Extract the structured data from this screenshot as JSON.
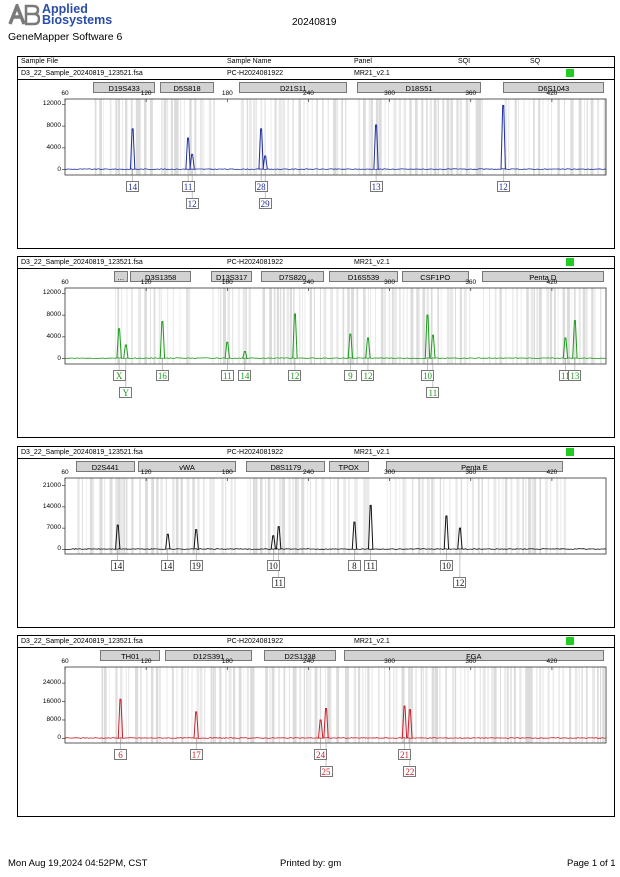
{
  "brand": {
    "line1": "Applied",
    "line2": "Biosystems"
  },
  "software": "GeneMapper Software 6",
  "run_date": "20240819",
  "header_columns": [
    "Sample File",
    "Sample Name",
    "Panel",
    "SQI",
    "SQ"
  ],
  "footer": {
    "datetime": "Mon Aug 19,2024 04:52PM, CST",
    "printed_by": "Printed by: gm",
    "page": "Page 1 of 1"
  },
  "colors": {
    "blue": "#1f2f9e",
    "green": "#1c9a1c",
    "black": "#111111",
    "red": "#c8202a",
    "quality": "#22cc22"
  },
  "chart_data": [
    {
      "type": "line",
      "sample_file": "D3_22_Sample_20240819_123521.fsa",
      "sample_name": "PC-H2024081922",
      "panel": "MR21_v2.1",
      "xlim": [
        60,
        460
      ],
      "x_ticks": [
        60,
        120,
        180,
        240,
        300,
        360,
        420
      ],
      "ylim": [
        -1000,
        13000
      ],
      "y_ticks": [
        0,
        4000,
        8000,
        12000
      ],
      "markers": [
        {
          "name": "D19S433",
          "start": 81,
          "end": 128
        },
        {
          "name": "D5S818",
          "start": 130,
          "end": 172
        },
        {
          "name": "D21S11",
          "start": 189,
          "end": 270
        },
        {
          "name": "D18S51",
          "start": 276,
          "end": 369
        },
        {
          "name": "D6S1043",
          "start": 384,
          "end": 460
        }
      ],
      "peaks": [
        {
          "x": 110,
          "height": 7500,
          "allele": "14",
          "row": 0
        },
        {
          "x": 151,
          "height": 5800,
          "allele": "11",
          "row": 0
        },
        {
          "x": 154,
          "height": 2800,
          "allele": "12",
          "row": 1
        },
        {
          "x": 205,
          "height": 7500,
          "allele": "28",
          "row": 0
        },
        {
          "x": 208,
          "height": 2500,
          "allele": "29",
          "row": 1
        },
        {
          "x": 290,
          "height": 8200,
          "allele": "13",
          "row": 0
        },
        {
          "x": 384,
          "height": 11800,
          "allele": "12",
          "row": 0
        }
      ]
    },
    {
      "type": "line",
      "sample_file": "D3_22_Sample_20240819_123521.fsa",
      "sample_name": "PC-H2024081922",
      "panel": "MR21_v2.1",
      "xlim": [
        60,
        460
      ],
      "x_ticks": [
        60,
        120,
        180,
        240,
        300,
        360,
        420
      ],
      "ylim": [
        -1000,
        13000
      ],
      "y_ticks": [
        0,
        4000,
        8000,
        12000
      ],
      "markers": [
        {
          "name": "...",
          "start": 96,
          "end": 108
        },
        {
          "name": "D3S1358",
          "start": 108,
          "end": 155
        },
        {
          "name": "D13S317",
          "start": 168,
          "end": 200
        },
        {
          "name": "D7S820",
          "start": 205,
          "end": 253
        },
        {
          "name": "D16S539",
          "start": 255,
          "end": 308
        },
        {
          "name": "CSF1PO",
          "start": 309,
          "end": 360
        },
        {
          "name": "Penta D",
          "start": 368,
          "end": 460
        }
      ],
      "peaks": [
        {
          "x": 100,
          "height": 5500,
          "allele": "X",
          "row": 0
        },
        {
          "x": 105,
          "height": 2500,
          "allele": "Y",
          "row": 1
        },
        {
          "x": 132,
          "height": 6800,
          "allele": "16",
          "row": 0
        },
        {
          "x": 180,
          "height": 3000,
          "allele": "11",
          "row": 0
        },
        {
          "x": 193,
          "height": 1300,
          "allele": "14",
          "row": 0
        },
        {
          "x": 230,
          "height": 8200,
          "allele": "12",
          "row": 0
        },
        {
          "x": 271,
          "height": 4500,
          "allele": "9",
          "row": 0
        },
        {
          "x": 284,
          "height": 3800,
          "allele": "12",
          "row": 0
        },
        {
          "x": 328,
          "height": 8000,
          "allele": "10",
          "row": 0
        },
        {
          "x": 332,
          "height": 4300,
          "allele": "11",
          "row": 1
        },
        {
          "x": 430,
          "height": 3800,
          "allele": "11",
          "row": 0
        },
        {
          "x": 437,
          "height": 7000,
          "allele": "13",
          "row": 0
        }
      ]
    },
    {
      "type": "line",
      "sample_file": "D3_22_Sample_20240819_123521.fsa",
      "sample_name": "PC-H2024081922",
      "panel": "MR21_v2.1",
      "xlim": [
        60,
        460
      ],
      "x_ticks": [
        60,
        120,
        180,
        240,
        300,
        360,
        420
      ],
      "ylim": [
        -1500,
        23500
      ],
      "y_ticks": [
        0,
        7000,
        14000,
        21000
      ],
      "markers": [
        {
          "name": "D2S441",
          "start": 68,
          "end": 113
        },
        {
          "name": "vWA",
          "start": 114,
          "end": 188
        },
        {
          "name": "D8S1179",
          "start": 194,
          "end": 254
        },
        {
          "name": "TPOX",
          "start": 255,
          "end": 286
        },
        {
          "name": "Penta E",
          "start": 297,
          "end": 430
        }
      ],
      "peaks": [
        {
          "x": 99,
          "height": 8000,
          "allele": "14",
          "row": 0
        },
        {
          "x": 136,
          "height": 5000,
          "allele": "14",
          "row": 0
        },
        {
          "x": 157,
          "height": 6500,
          "allele": "19",
          "row": 0
        },
        {
          "x": 214,
          "height": 4500,
          "allele": "10",
          "row": 0
        },
        {
          "x": 218,
          "height": 7500,
          "allele": "11",
          "row": 1
        },
        {
          "x": 274,
          "height": 9000,
          "allele": "8",
          "row": 0
        },
        {
          "x": 286,
          "height": 14500,
          "allele": "11",
          "row": 0
        },
        {
          "x": 342,
          "height": 11000,
          "allele": "10",
          "row": 0
        },
        {
          "x": 352,
          "height": 7000,
          "allele": "12",
          "row": 1
        }
      ]
    },
    {
      "type": "line",
      "sample_file": "D3_22_Sample_20240819_123521.fsa",
      "sample_name": "PC-H2024081922",
      "panel": "MR21_v2.1",
      "xlim": [
        60,
        460
      ],
      "x_ticks": [
        60,
        120,
        180,
        240,
        300,
        360,
        420
      ],
      "ylim": [
        -2000,
        31000
      ],
      "y_ticks": [
        0,
        8000,
        16000,
        24000
      ],
      "markers": [
        {
          "name": "TH01",
          "start": 86,
          "end": 132
        },
        {
          "name": "D12S391",
          "start": 134,
          "end": 200
        },
        {
          "name": "D2S1338",
          "start": 207,
          "end": 262
        },
        {
          "name": "FGA",
          "start": 266,
          "end": 460
        }
      ],
      "peaks": [
        {
          "x": 101,
          "height": 17000,
          "allele": "6",
          "row": 0
        },
        {
          "x": 157,
          "height": 11500,
          "allele": "17",
          "row": 0
        },
        {
          "x": 249,
          "height": 8000,
          "allele": "24",
          "row": 0
        },
        {
          "x": 253,
          "height": 13000,
          "allele": "25",
          "row": 1
        },
        {
          "x": 311,
          "height": 14000,
          "allele": "21",
          "row": 0
        },
        {
          "x": 315,
          "height": 12500,
          "allele": "22",
          "row": 1
        }
      ]
    }
  ]
}
